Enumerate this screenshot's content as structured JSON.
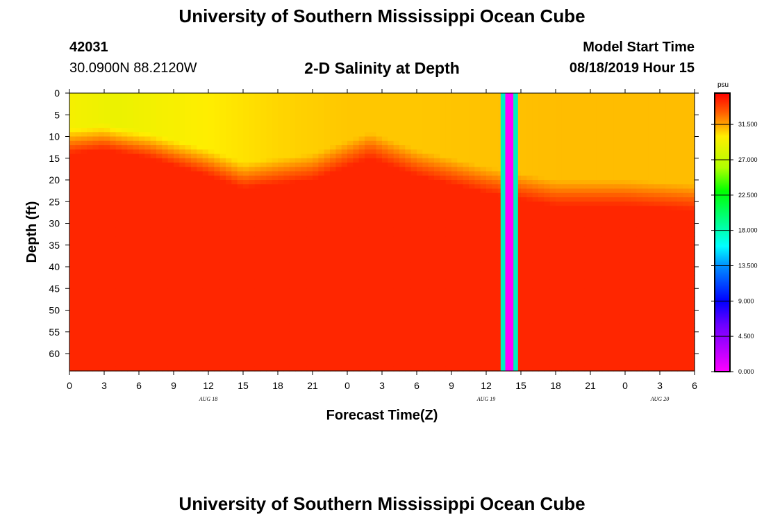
{
  "header": {
    "title_top": "University of Southern Mississippi Ocean Cube",
    "title_bottom": "University of Southern Mississippi Ocean Cube",
    "station_id": "42031",
    "coords": "30.0900N 88.2120W",
    "plot_title": "2-D Salinity at Depth",
    "model_label": "Model Start Time",
    "model_time": "08/18/2019 Hour 15"
  },
  "chart_data": {
    "type": "heatmap",
    "title": "2-D Salinity at Depth",
    "xlabel": "Forecast Time(Z)",
    "ylabel": "Depth (ft)",
    "x_tick_labels": [
      "0",
      "3",
      "6",
      "9",
      "12",
      "15",
      "18",
      "21",
      "0",
      "3",
      "6",
      "9",
      "12",
      "15",
      "18",
      "21",
      "0",
      "3",
      "6"
    ],
    "x_hours": [
      0,
      3,
      6,
      9,
      12,
      15,
      18,
      21,
      24,
      27,
      30,
      33,
      36,
      39,
      42,
      45,
      48,
      51,
      54
    ],
    "xlim": [
      0,
      54
    ],
    "date_labels": [
      {
        "text": "AUG 18",
        "hour": 12
      },
      {
        "text": "AUG 19",
        "hour": 36
      },
      {
        "text": "AUG 20",
        "hour": 51
      }
    ],
    "y_ticks": [
      0,
      5,
      10,
      15,
      20,
      25,
      30,
      35,
      40,
      45,
      50,
      55,
      60
    ],
    "ylim": [
      0,
      64
    ],
    "surface_salinity_by_hour": [
      [
        0,
        29.5
      ],
      [
        4,
        29.0
      ],
      [
        8,
        29.5
      ],
      [
        12,
        30.0
      ],
      [
        18,
        30.5
      ],
      [
        24,
        30.8
      ],
      [
        30,
        30.8
      ],
      [
        36,
        30.9
      ],
      [
        42,
        31.0
      ],
      [
        48,
        31.0
      ],
      [
        54,
        31.0
      ]
    ],
    "halocline_depth_ft_by_hour": [
      [
        0,
        11
      ],
      [
        3,
        10
      ],
      [
        7,
        12
      ],
      [
        12,
        16
      ],
      [
        15,
        19
      ],
      [
        21,
        17
      ],
      [
        26,
        12
      ],
      [
        30,
        16
      ],
      [
        36,
        20
      ],
      [
        42,
        23
      ],
      [
        48,
        23
      ],
      [
        54,
        24
      ]
    ],
    "deep_salinity": 34.5,
    "missing_data_hour": 38,
    "colorbar": {
      "unit": "psu",
      "ticks": [
        "0.000",
        "4.500",
        "9.000",
        "13.500",
        "18.000",
        "22.500",
        "27.000",
        "31.500"
      ],
      "tick_values": [
        0,
        4.5,
        9,
        13.5,
        18,
        22.5,
        27,
        31.5
      ],
      "range": [
        0,
        35.5
      ],
      "stops": [
        {
          "v": 0,
          "c": "#ff00ff"
        },
        {
          "v": 2,
          "c": "#cc00ff"
        },
        {
          "v": 6,
          "c": "#6a00ff"
        },
        {
          "v": 9,
          "c": "#0000ff"
        },
        {
          "v": 13.5,
          "c": "#0090ff"
        },
        {
          "v": 16,
          "c": "#00ffff"
        },
        {
          "v": 19,
          "c": "#00ff90"
        },
        {
          "v": 23,
          "c": "#00ff00"
        },
        {
          "v": 26,
          "c": "#b0ff00"
        },
        {
          "v": 30,
          "c": "#ffee00"
        },
        {
          "v": 31.5,
          "c": "#ffa500"
        },
        {
          "v": 33,
          "c": "#ff6000"
        },
        {
          "v": 35.5,
          "c": "#ff0000"
        }
      ]
    }
  }
}
